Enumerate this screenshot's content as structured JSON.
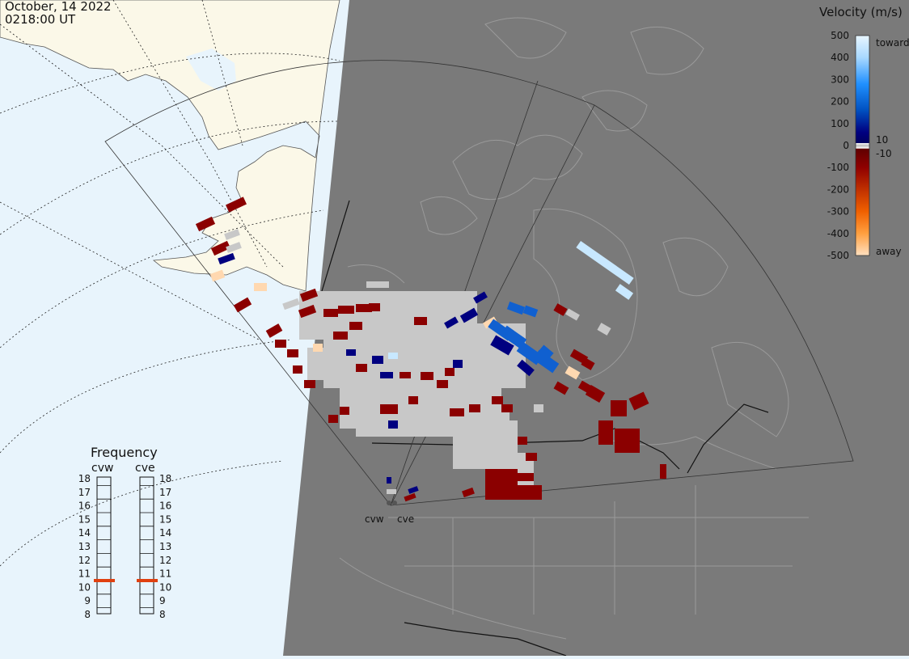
{
  "header": {
    "date": "October, 14 2022",
    "time": "0218:00 UT"
  },
  "colors": {
    "ocean": "#e8f4fc",
    "land_day": "#fbf8e8",
    "night": "#7a7a7a",
    "coast_night": "#9a9a9a",
    "border": "#111111",
    "gray_scatter": "#c8c8c8",
    "dark_red": "#8b0000",
    "dark_blue": "#000080",
    "mid_blue": "#1060d0",
    "light_blue": "#c8e8ff",
    "peach": "#ffd8b0",
    "freq_marker": "#e04010"
  },
  "stations": [
    {
      "name": "cvw"
    },
    {
      "name": "cve"
    }
  ],
  "frequency_panel": {
    "title": "Frequency",
    "left_label": "cvw",
    "right_label": "cve",
    "ticks": [
      18,
      17,
      16,
      15,
      14,
      13,
      12,
      11,
      10,
      9,
      8
    ],
    "cvw_value": 10.5,
    "cve_value": 10.5
  },
  "velocity_scale": {
    "title": "Velocity (m/s)",
    "ticks": [
      "500",
      "400",
      "300",
      "200",
      "100",
      "0",
      "-100",
      "-200",
      "-300",
      "-400",
      "-500"
    ],
    "upper_label": "toward",
    "lower_label": "away",
    "threshold_upper": "10",
    "threshold_lower": "-10",
    "gradient": [
      "#e8f6ff",
      "#b8e0ff",
      "#60b8ff",
      "#1080f0",
      "#0050c0",
      "#0030a0",
      "#000070",
      "#000060",
      "#ffffff",
      "#bbbbbb",
      "#600000",
      "#800000",
      "#a01000",
      "#c03000",
      "#e05000",
      "#f07000",
      "#ff9010",
      "#ffc070",
      "#ffe0c0"
    ]
  }
}
